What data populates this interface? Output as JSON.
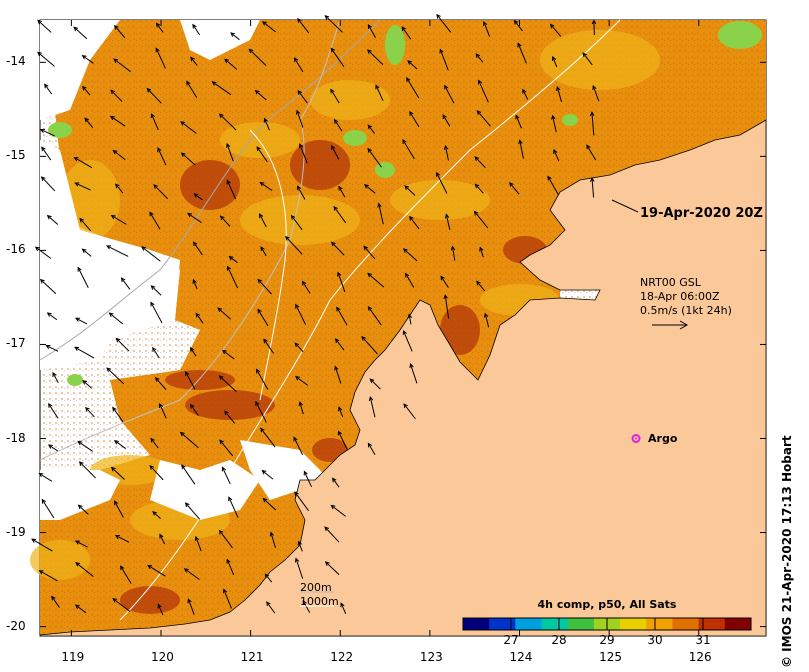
{
  "map": {
    "lon_ticks": [
      "119",
      "120",
      "121",
      "122",
      "123",
      "124",
      "125",
      "126"
    ],
    "lat_ticks": [
      "-14",
      "-15",
      "-16",
      "-17",
      "-18",
      "-19",
      "-20"
    ],
    "lon_range": [
      118.65,
      126.75
    ],
    "lat_range": [
      -20.1,
      -13.55
    ],
    "land_color": "#fbc999",
    "cloud_color": "#ffffff"
  },
  "annotations": {
    "date_label": "19-Apr-2020 20Z",
    "vector_source": "NRT00 GSL",
    "vector_time": "18-Apr 06:00Z",
    "vector_scale": "0.5m/s (1kt 24h)",
    "argo_label": "Argo",
    "isobath_200": "200m",
    "isobath_1000": "1000m",
    "credit": "© IMOS 21-Apr-2020 17:13 Hobart"
  },
  "colorbar": {
    "title": "4h comp, p50, All Sats",
    "ticks": [
      "27",
      "28",
      "29",
      "30",
      "31"
    ],
    "range": [
      26.0,
      32.0
    ],
    "colors": [
      "#00007a",
      "#0033cc",
      "#00a0e0",
      "#00c8a0",
      "#40c040",
      "#a0d020",
      "#e8d000",
      "#f0a000",
      "#e07000",
      "#c03000",
      "#800000"
    ]
  },
  "argo": {
    "lon": 125.3,
    "lat": -18.0,
    "color": "#e020e0"
  }
}
